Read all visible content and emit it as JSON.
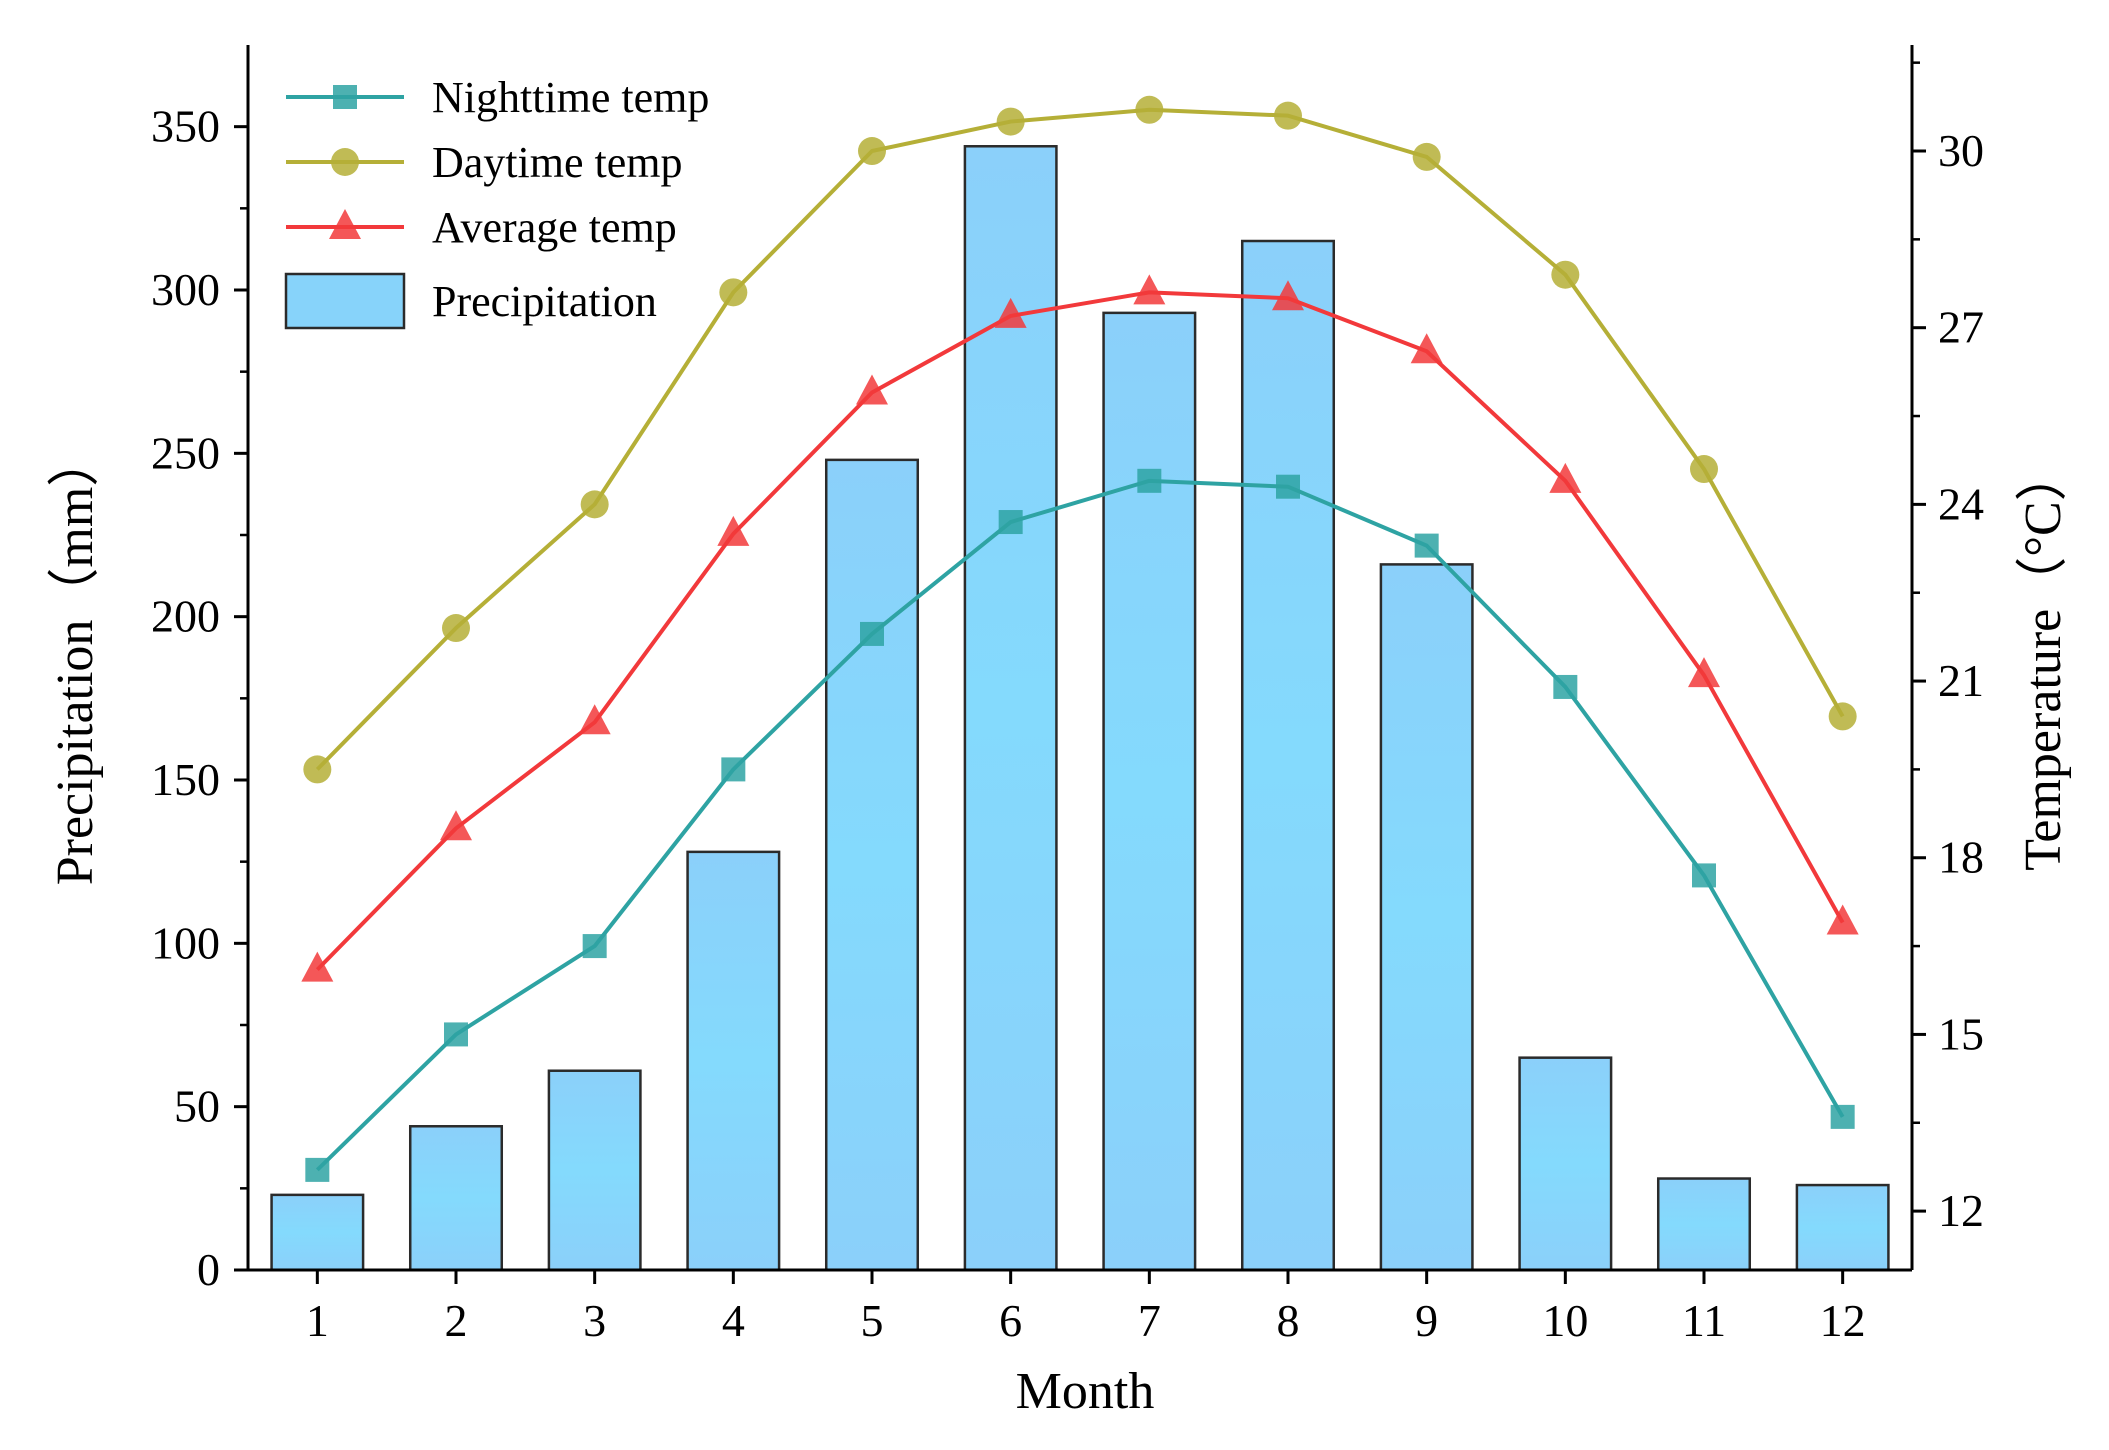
{
  "chart_data": {
    "type": "bar+line",
    "categories": [
      "1",
      "2",
      "3",
      "4",
      "5",
      "6",
      "7",
      "8",
      "9",
      "10",
      "11",
      "12"
    ],
    "xlabel": "Month",
    "ylabel_left": "Precipitation（mm）",
    "ylabel_right": "Temperature（°C）",
    "ylim_left": [
      0,
      375
    ],
    "yticks_left": [
      0,
      50,
      100,
      150,
      200,
      250,
      300,
      350
    ],
    "ylim_right": [
      11,
      31.8
    ],
    "yticks_right": [
      12,
      15,
      18,
      21,
      24,
      27,
      30
    ],
    "precipitation": {
      "name": "Precipitation",
      "color": "#87D3FA",
      "values": [
        23,
        44,
        61,
        128,
        248,
        344,
        293,
        315,
        216,
        65,
        28,
        26
      ]
    },
    "series": [
      {
        "name": "Nighttime temp",
        "color": "#2EA3A3",
        "marker": "square",
        "values": [
          12.7,
          15.0,
          16.5,
          19.5,
          21.8,
          23.7,
          24.4,
          24.3,
          23.3,
          20.9,
          17.7,
          13.6
        ]
      },
      {
        "name": "Daytime temp",
        "color": "#B5AF37",
        "marker": "circle",
        "values": [
          19.5,
          21.9,
          24.0,
          27.6,
          30.0,
          30.5,
          30.7,
          30.6,
          29.9,
          27.9,
          24.6,
          20.4
        ]
      },
      {
        "name": "Average temp",
        "color": "#F2393B",
        "marker": "triangle",
        "values": [
          16.1,
          18.5,
          20.3,
          23.5,
          25.9,
          27.2,
          27.6,
          27.5,
          26.6,
          24.4,
          21.1,
          16.9
        ]
      }
    ],
    "legend": [
      "Nighttime temp",
      "Daytime temp",
      "Average temp",
      "Precipitation"
    ],
    "legend_position": "top-left",
    "grid": false
  }
}
